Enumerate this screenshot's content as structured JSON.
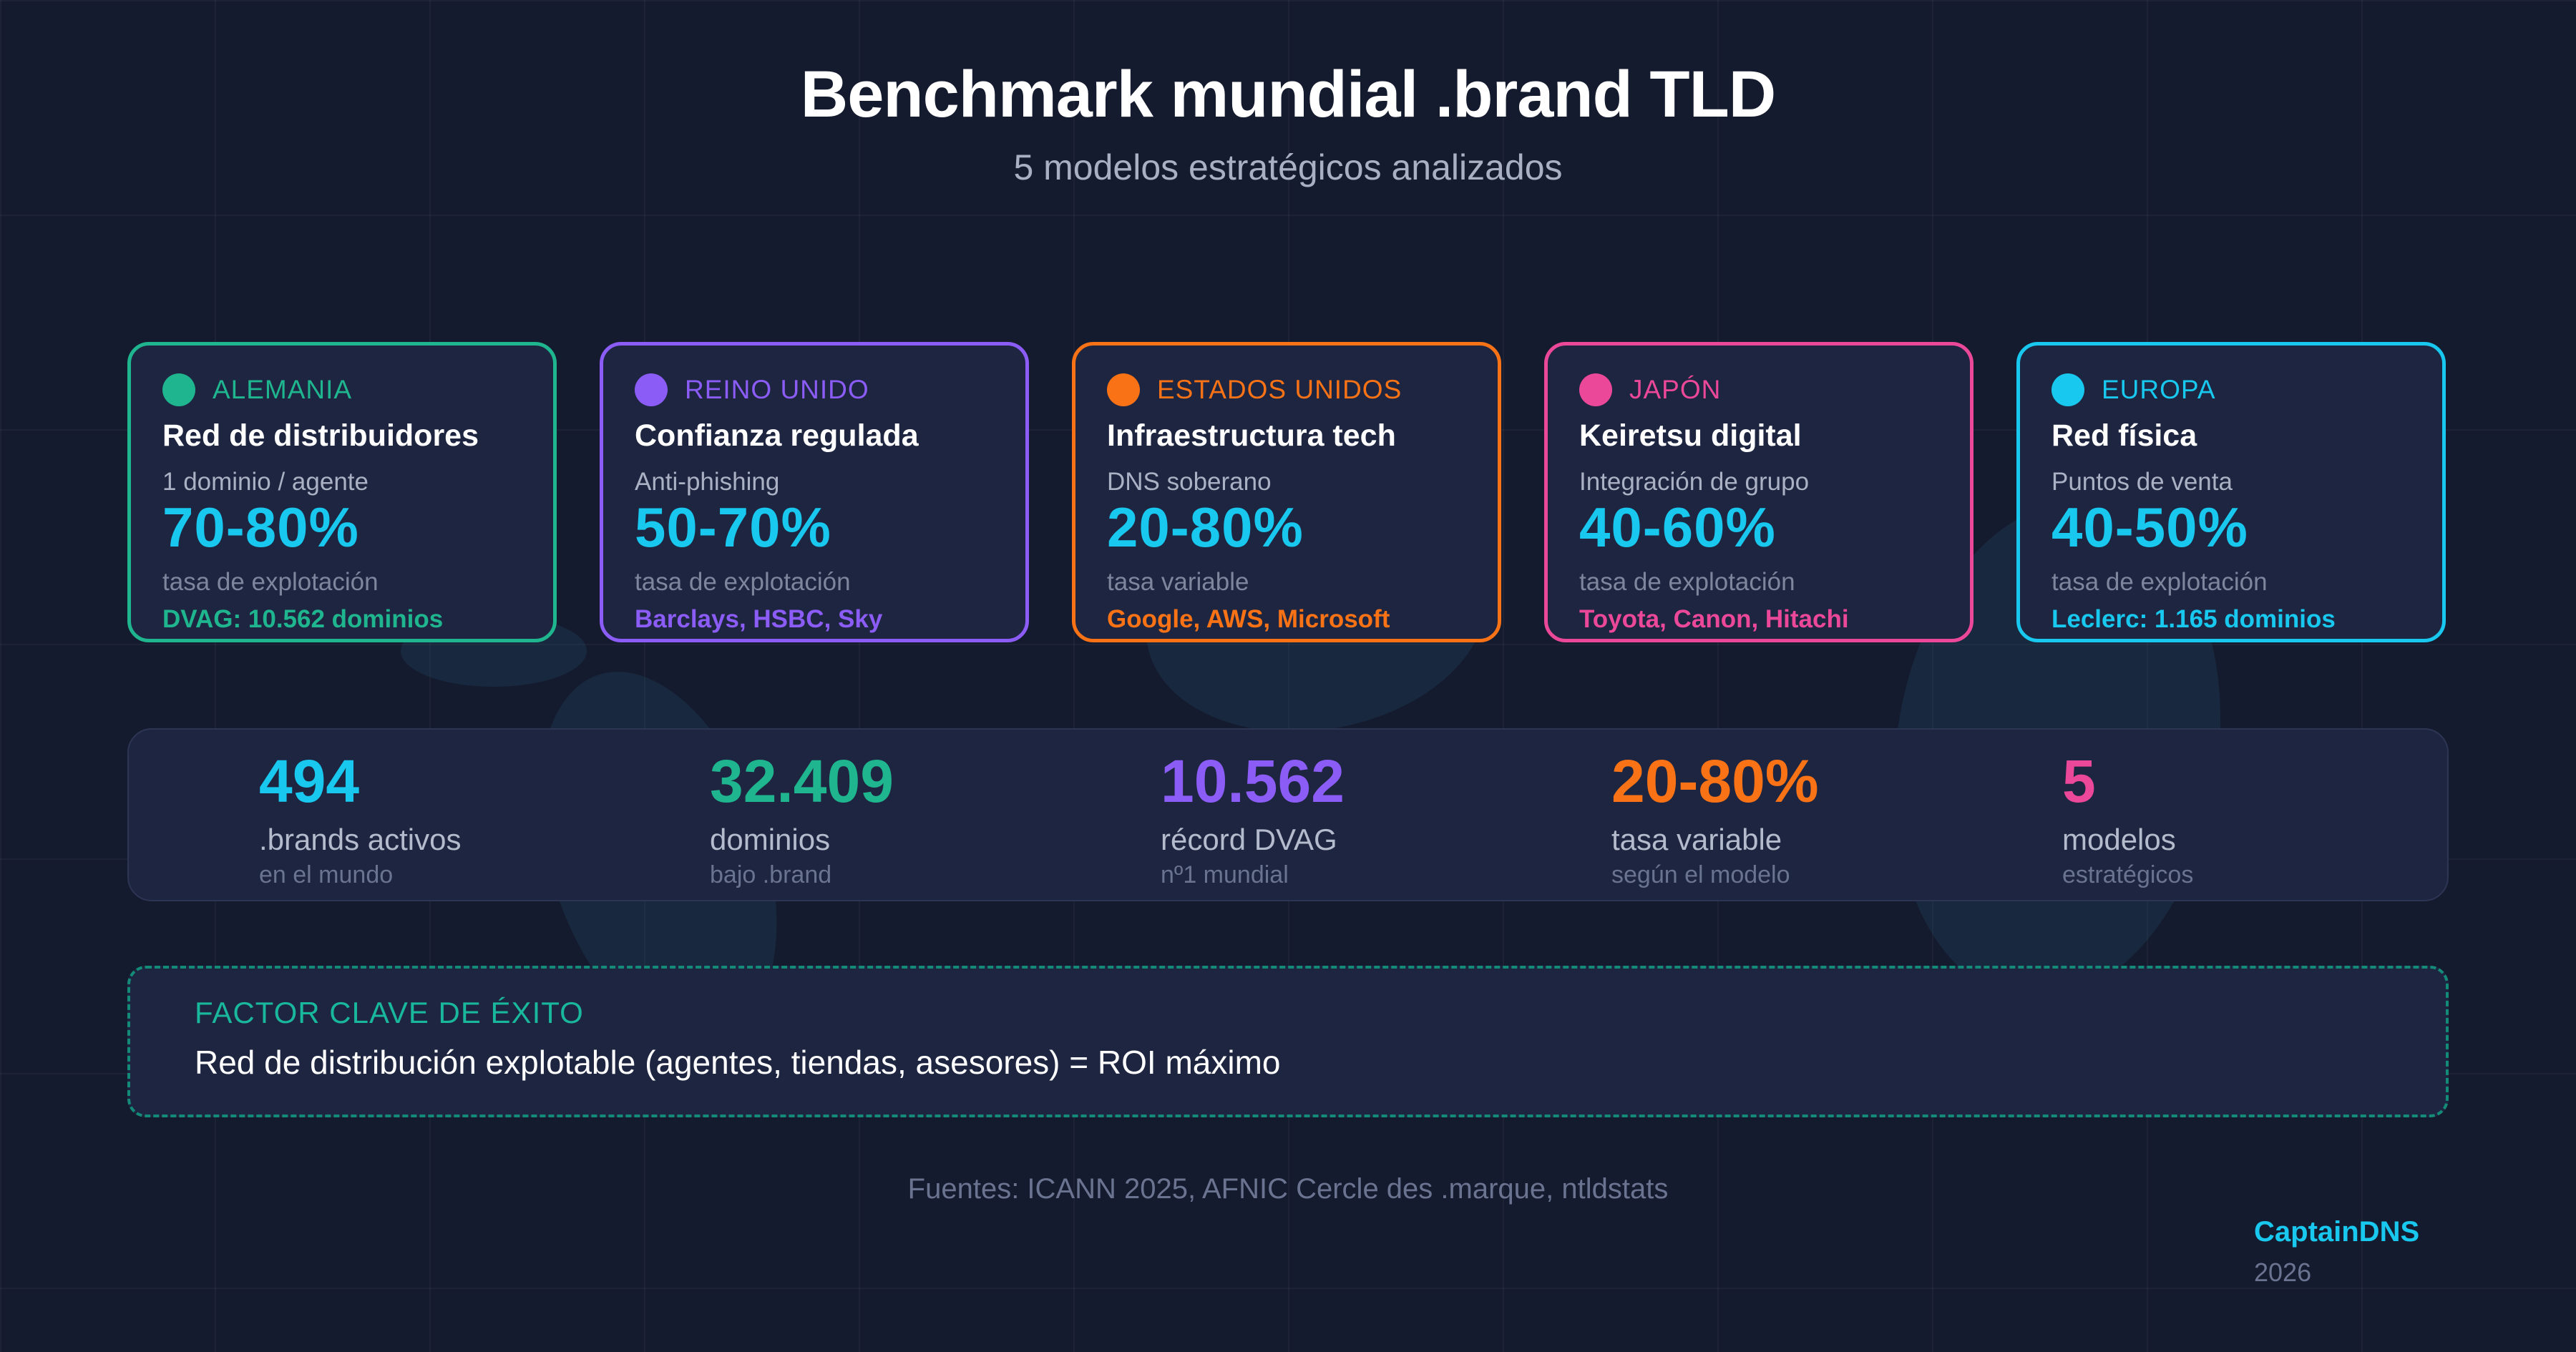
{
  "header": {
    "title": "Benchmark mundial .brand TLD",
    "subtitle": "5 modelos estratégicos analizados"
  },
  "cards": [
    {
      "region": "ALEMANIA",
      "name": "Red de distribuidores",
      "desc": "1 dominio / agente",
      "pct": "70-80%",
      "rate": "tasa de explotación",
      "example": "DVAG: 10.562 dominios",
      "color": "#1fb58f"
    },
    {
      "region": "REINO UNIDO",
      "name": "Confianza regulada",
      "desc": "Anti-phishing",
      "pct": "50-70%",
      "rate": "tasa de explotación",
      "example": "Barclays, HSBC, Sky",
      "color": "#8b5cf6"
    },
    {
      "region": "ESTADOS UNIDOS",
      "name": "Infraestructura tech",
      "desc": "DNS soberano",
      "pct": "20-80%",
      "rate": "tasa variable",
      "example": "Google, AWS, Microsoft",
      "color": "#f97316"
    },
    {
      "region": "JAPÓN",
      "name": "Keiretsu digital",
      "desc": "Integración de grupo",
      "pct": "40-60%",
      "rate": "tasa de explotación",
      "example": "Toyota, Canon, Hitachi",
      "color": "#ec4899"
    },
    {
      "region": "EUROPA",
      "name": "Red física",
      "desc": "Puntos de venta",
      "pct": "40-50%",
      "rate": "tasa de explotación",
      "example": "Leclerc: 1.165 dominios",
      "color": "#18c8ee"
    }
  ],
  "stats": [
    {
      "value": "494",
      "label": ".brands activos",
      "sub": "en el mundo",
      "color": "#18c8ee"
    },
    {
      "value": "32.409",
      "label": "dominios",
      "sub": "bajo .brand",
      "color": "#1fb58f"
    },
    {
      "value": "10.562",
      "label": "récord DVAG",
      "sub": "nº1 mundial",
      "color": "#8b5cf6"
    },
    {
      "value": "20-80%",
      "label": "tasa variable",
      "sub": "según el modelo",
      "color": "#f97316"
    },
    {
      "value": "5",
      "label": "modelos",
      "sub": "estratégicos",
      "color": "#ec4899"
    }
  ],
  "key_factor": {
    "label": "FACTOR CLAVE DE ÉXITO",
    "text": "Red de distribución explotable (agentes, tiendas, asesores) = ROI máximo"
  },
  "footer": {
    "sources": "Fuentes: ICANN 2025, AFNIC Cercle des .marque, ntldstats",
    "brand": "CaptainDNS",
    "year": "2026"
  }
}
